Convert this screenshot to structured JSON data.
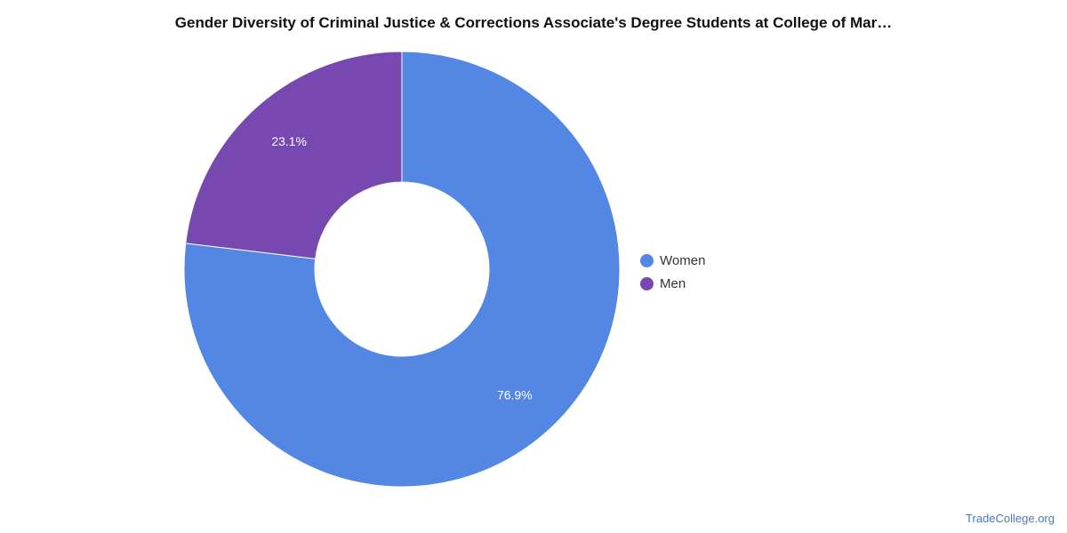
{
  "title": "Gender Diversity of Criminal Justice & Corrections Associate's Degree Students at College of Mar…",
  "watermark": "TradeCollege.org",
  "chart_data": {
    "type": "pie",
    "donut": true,
    "title": "Gender Diversity of Criminal Justice & Corrections Associate's Degree Students at College of Mar…",
    "legend_position": "right",
    "slices": [
      {
        "label": "Women",
        "value": 76.9,
        "display": "76.9%",
        "color": "#5387e3"
      },
      {
        "label": "Men",
        "value": 23.1,
        "display": "23.1%",
        "color": "#7648b0"
      }
    ]
  },
  "legend": {
    "items": [
      {
        "label": "Women",
        "color": "#5387e3"
      },
      {
        "label": "Men",
        "color": "#7648b0"
      }
    ]
  }
}
